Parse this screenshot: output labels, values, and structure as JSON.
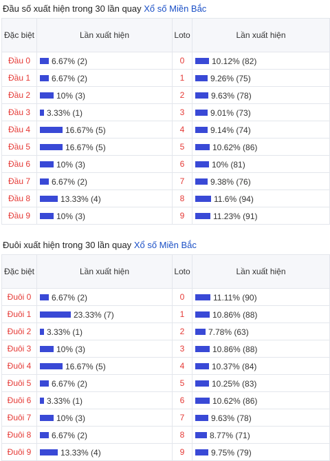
{
  "sections": [
    {
      "title_prefix": "Đầu số xuất hiện trong 30 lần quay",
      "title_link": "Xổ số Miền Bắc",
      "headers": {
        "special": "Đặc biệt",
        "count": "Lần xuất hiện",
        "loto": "Loto",
        "loto_count": "Lần xuất hiện"
      },
      "rows": [
        {
          "label": "Đầu 0",
          "count_text": "6.67% (2)",
          "count_pct": 6.67,
          "loto": "0",
          "loto_text": "10.12% (82)",
          "loto_pct": 10.12
        },
        {
          "label": "Đầu 1",
          "count_text": "6.67% (2)",
          "count_pct": 6.67,
          "loto": "1",
          "loto_text": "9.26% (75)",
          "loto_pct": 9.26
        },
        {
          "label": "Đầu 2",
          "count_text": "10% (3)",
          "count_pct": 10,
          "loto": "2",
          "loto_text": "9.63% (78)",
          "loto_pct": 9.63
        },
        {
          "label": "Đầu 3",
          "count_text": "3.33% (1)",
          "count_pct": 3.33,
          "loto": "3",
          "loto_text": "9.01% (73)",
          "loto_pct": 9.01
        },
        {
          "label": "Đầu 4",
          "count_text": "16.67% (5)",
          "count_pct": 16.67,
          "loto": "4",
          "loto_text": "9.14% (74)",
          "loto_pct": 9.14
        },
        {
          "label": "Đầu 5",
          "count_text": "16.67% (5)",
          "count_pct": 16.67,
          "loto": "5",
          "loto_text": "10.62% (86)",
          "loto_pct": 10.62
        },
        {
          "label": "Đầu 6",
          "count_text": "10% (3)",
          "count_pct": 10,
          "loto": "6",
          "loto_text": "10% (81)",
          "loto_pct": 10
        },
        {
          "label": "Đầu 7",
          "count_text": "6.67% (2)",
          "count_pct": 6.67,
          "loto": "7",
          "loto_text": "9.38% (76)",
          "loto_pct": 9.38
        },
        {
          "label": "Đầu 8",
          "count_text": "13.33% (4)",
          "count_pct": 13.33,
          "loto": "8",
          "loto_text": "11.6% (94)",
          "loto_pct": 11.6
        },
        {
          "label": "Đầu 9",
          "count_text": "10% (3)",
          "count_pct": 10,
          "loto": "9",
          "loto_text": "11.23% (91)",
          "loto_pct": 11.23
        }
      ]
    },
    {
      "title_prefix": "Đuôi xuất hiện trong 30 lần quay",
      "title_link": "Xổ số Miền Bắc",
      "headers": {
        "special": "Đặc biệt",
        "count": "Lần xuất hiện",
        "loto": "Loto",
        "loto_count": "Lần xuất hiện"
      },
      "rows": [
        {
          "label": "Đuôi 0",
          "count_text": "6.67% (2)",
          "count_pct": 6.67,
          "loto": "0",
          "loto_text": "11.11% (90)",
          "loto_pct": 11.11
        },
        {
          "label": "Đuôi 1",
          "count_text": "23.33% (7)",
          "count_pct": 23.33,
          "loto": "1",
          "loto_text": "10.86% (88)",
          "loto_pct": 10.86
        },
        {
          "label": "Đuôi 2",
          "count_text": "3.33% (1)",
          "count_pct": 3.33,
          "loto": "2",
          "loto_text": "7.78% (63)",
          "loto_pct": 7.78
        },
        {
          "label": "Đuôi 3",
          "count_text": "10% (3)",
          "count_pct": 10,
          "loto": "3",
          "loto_text": "10.86% (88)",
          "loto_pct": 10.86
        },
        {
          "label": "Đuôi 4",
          "count_text": "16.67% (5)",
          "count_pct": 16.67,
          "loto": "4",
          "loto_text": "10.37% (84)",
          "loto_pct": 10.37
        },
        {
          "label": "Đuôi 5",
          "count_text": "6.67% (2)",
          "count_pct": 6.67,
          "loto": "5",
          "loto_text": "10.25% (83)",
          "loto_pct": 10.25
        },
        {
          "label": "Đuôi 6",
          "count_text": "3.33% (1)",
          "count_pct": 3.33,
          "loto": "6",
          "loto_text": "10.62% (86)",
          "loto_pct": 10.62
        },
        {
          "label": "Đuôi 7",
          "count_text": "10% (3)",
          "count_pct": 10,
          "loto": "7",
          "loto_text": "9.63% (78)",
          "loto_pct": 9.63
        },
        {
          "label": "Đuôi 8",
          "count_text": "6.67% (2)",
          "count_pct": 6.67,
          "loto": "8",
          "loto_text": "8.77% (71)",
          "loto_pct": 8.77
        },
        {
          "label": "Đuôi 9",
          "count_text": "13.33% (4)",
          "count_pct": 13.33,
          "loto": "9",
          "loto_text": "9.75% (79)",
          "loto_pct": 9.75
        }
      ]
    }
  ],
  "colors": {
    "bar": "#3949d6",
    "accent_red": "#e53935",
    "link_blue": "#1a4fc6"
  }
}
